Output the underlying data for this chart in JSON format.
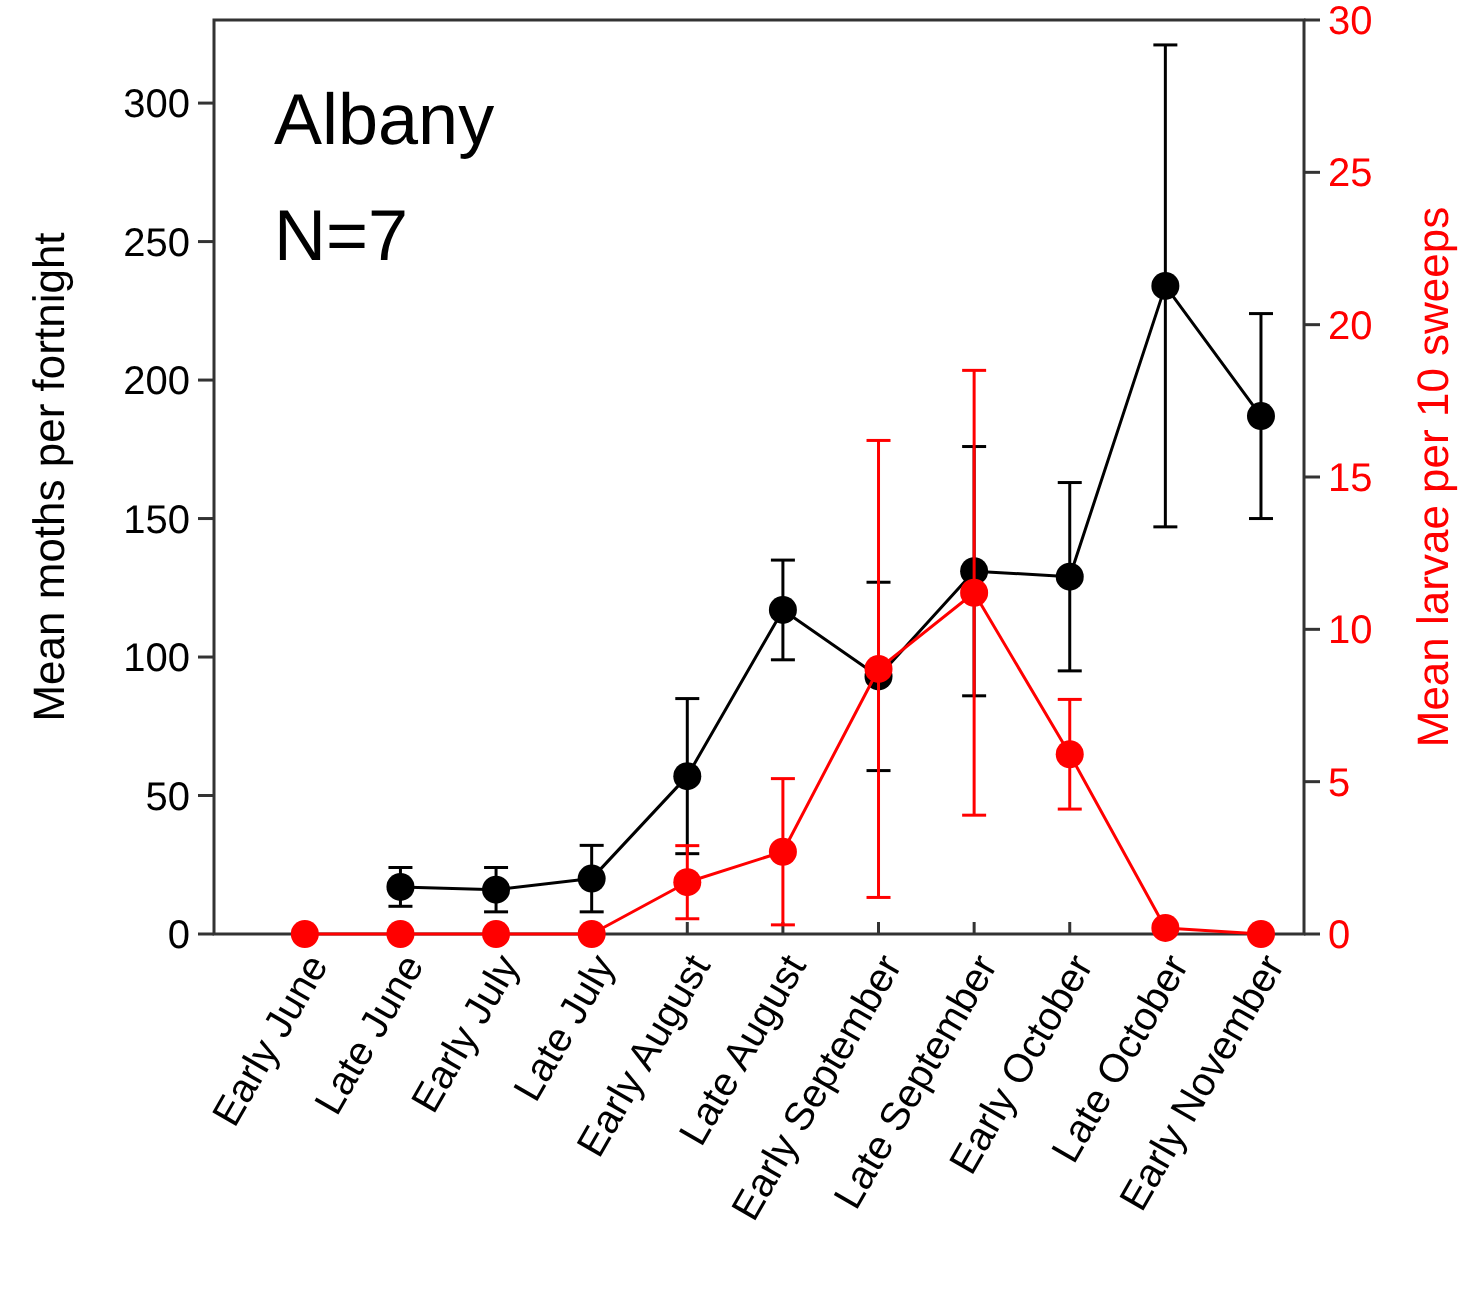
{
  "chart_data": {
    "type": "line",
    "ylabel": "Mean moths per fortnight",
    "y2label": "Mean larvae per 10 sweeps",
    "annotations": [
      "Albany",
      "N=7"
    ],
    "categories": [
      "Early June",
      "Late June",
      "Early July",
      "Late July",
      "Early August",
      "Late August",
      "Early September",
      "Late September",
      "Early October",
      "Late October",
      "Early November"
    ],
    "series": [
      {
        "color": "#000000",
        "values": [
          null,
          17,
          16,
          20,
          57,
          117,
          93,
          131,
          129,
          234,
          187
        ],
        "errors": [
          null,
          7,
          8,
          12,
          28,
          18,
          34,
          45,
          34,
          87,
          37
        ]
      },
      {
        "color": "#ff0000",
        "axis": "y2",
        "values": [
          0,
          0,
          0,
          0,
          1.7,
          2.7,
          8.7,
          11.2,
          5.9,
          0.2,
          0
        ],
        "errors": [
          null,
          null,
          null,
          null,
          1.2,
          2.4,
          7.5,
          7.3,
          1.8,
          null,
          null
        ]
      }
    ],
    "ylim": [
      0,
      330
    ],
    "yticks": [
      0,
      50,
      100,
      150,
      200,
      250,
      300
    ],
    "y2lim": [
      0,
      30
    ],
    "y2ticks": [
      0,
      5,
      10,
      15,
      20,
      25,
      30
    ],
    "marker": "circle",
    "line_style": "solid"
  }
}
